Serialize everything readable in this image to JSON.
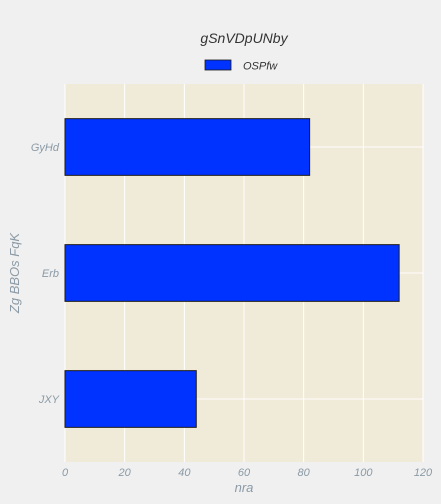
{
  "colors": {
    "page_background": "#f0f0f0",
    "plot_background": "#f0ead8",
    "bar_fill": "#0033ff",
    "bar_stroke": "#1a1a1a",
    "grid": "#ffffff",
    "text_muted": "#8a9aa6",
    "text_dark": "#333333"
  },
  "chart_data": {
    "type": "bar",
    "orientation": "horizontal",
    "title": "gSnVDpUNby",
    "xlabel": "nra",
    "ylabel": "Zg BBOs FqK",
    "categories": [
      "JXY",
      "Erb",
      "GyHd"
    ],
    "series": [
      {
        "name": "OSPfw",
        "values": [
          44,
          112,
          82
        ]
      }
    ],
    "xlim": [
      0,
      120
    ],
    "xticks": [
      0,
      20,
      40,
      60,
      80,
      100,
      120
    ],
    "grid": true,
    "legend_position": "top"
  }
}
